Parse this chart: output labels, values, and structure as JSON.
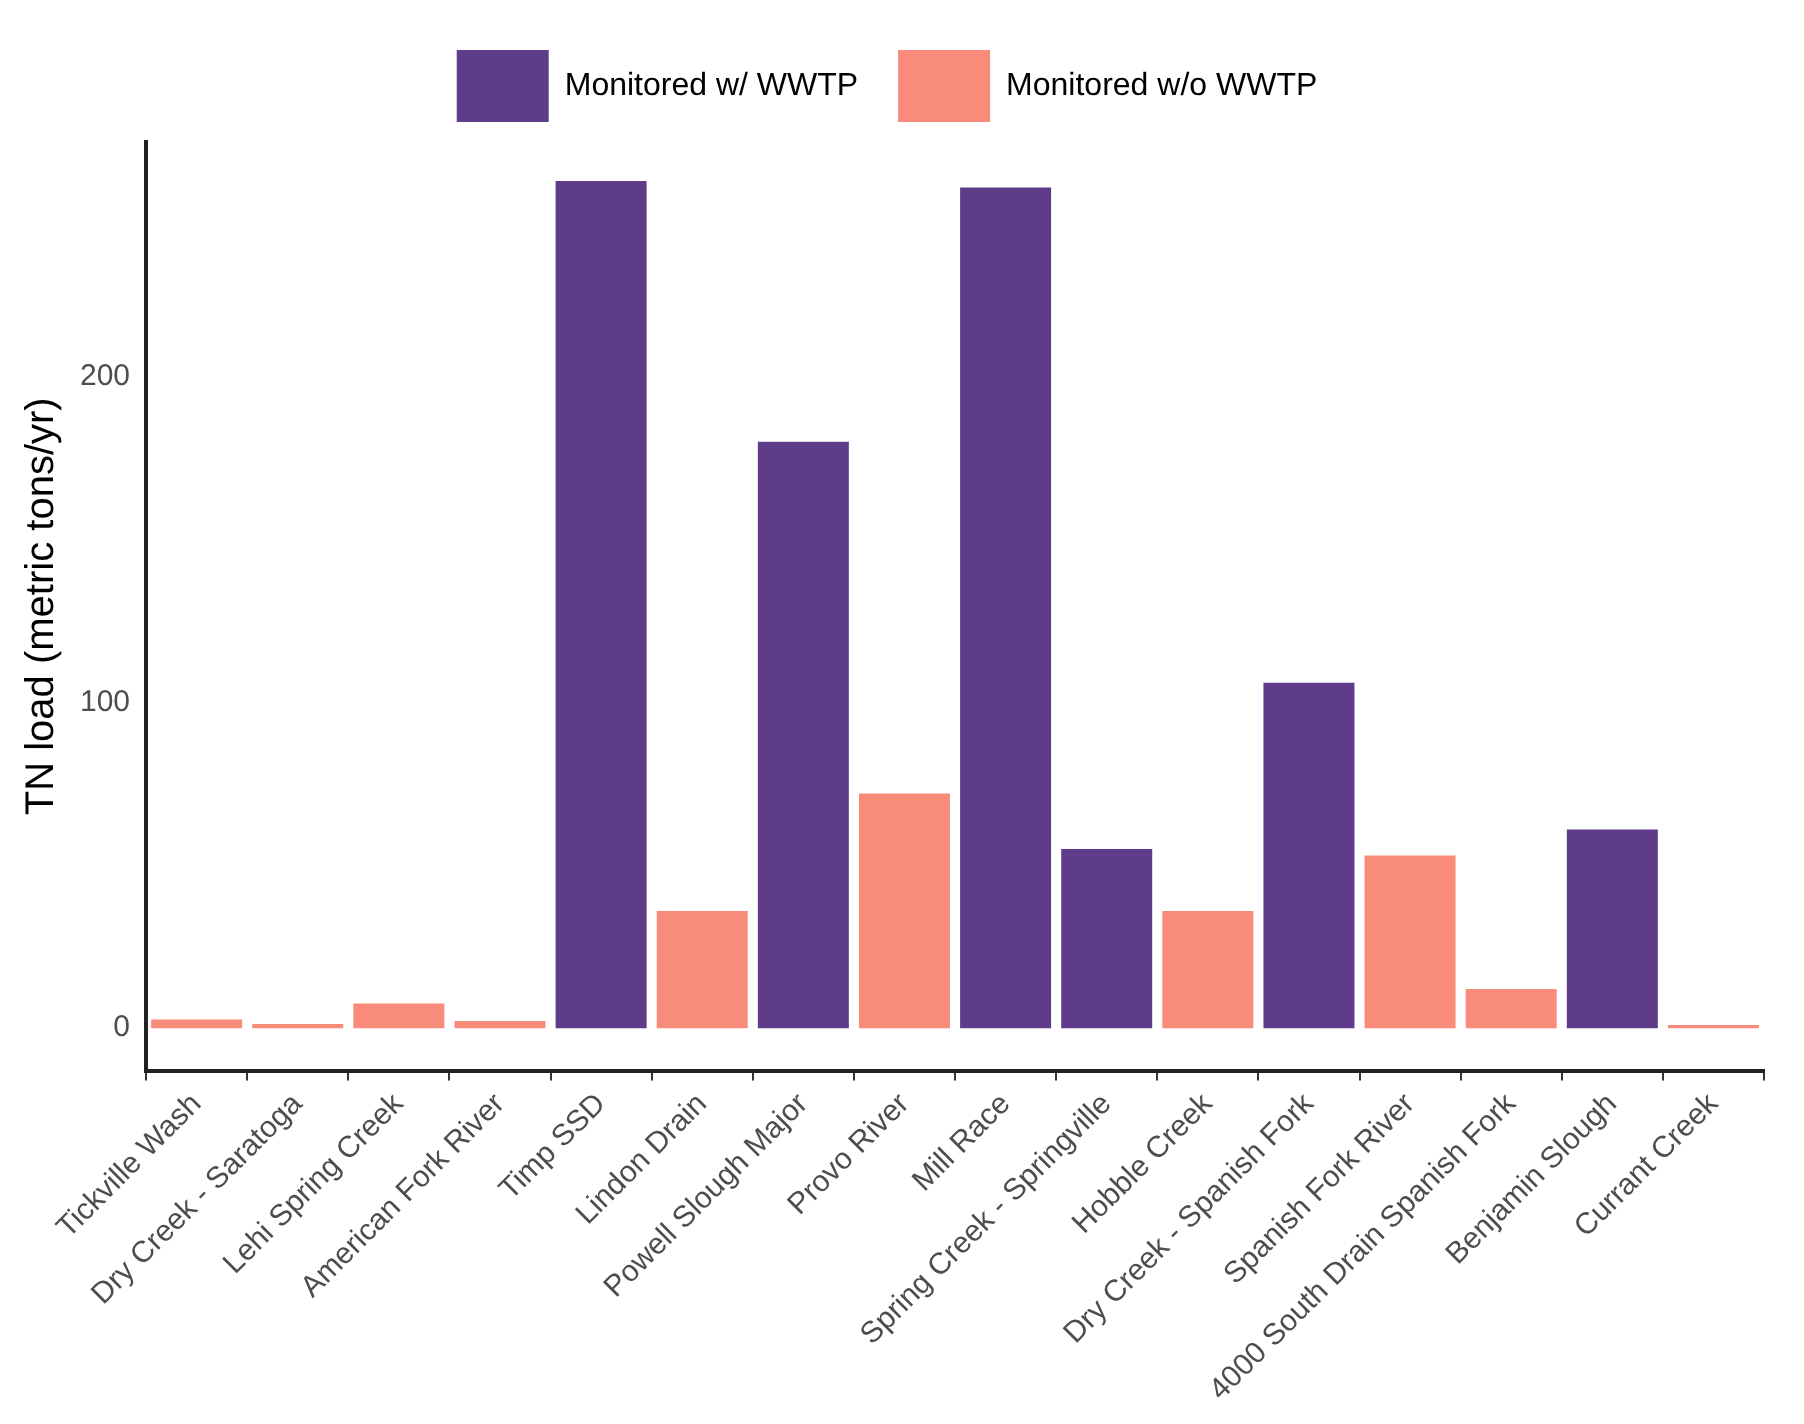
{
  "chart_data": {
    "type": "bar",
    "ylabel": "TN load (metric tons/yr)",
    "categories": [
      "Tickville Wash",
      "Dry Creek - Saratoga",
      "Lehi Spring Creek",
      "American Fork River",
      "Timp SSD",
      "Lindon Drain",
      "Powell Slough Major",
      "Provo River",
      "Mill Race",
      "Spring Creek - Springville",
      "Hobble Creek",
      "Dry Creek - Spanish Fork",
      "Spanish Fork River",
      "4000 South Drain Spanish Fork",
      "Benjamin Slough",
      "Currant Creek"
    ],
    "series": [
      {
        "name": "Monitored w/ WWTP",
        "color": "#5f3c8a",
        "values": [
          null,
          null,
          null,
          null,
          260,
          null,
          180,
          null,
          258,
          55,
          null,
          106,
          null,
          null,
          61,
          null
        ]
      },
      {
        "name": "Monitored w/o WWTP",
        "color": "#f98b7b",
        "values": [
          2.7,
          1.3,
          7.6,
          2.2,
          null,
          36,
          null,
          72,
          null,
          null,
          36,
          null,
          53,
          12,
          null,
          1
        ]
      }
    ],
    "ylim": [
      -13,
      272
    ],
    "yticks": [
      0,
      100,
      200
    ],
    "grid": false,
    "legend": "top"
  }
}
